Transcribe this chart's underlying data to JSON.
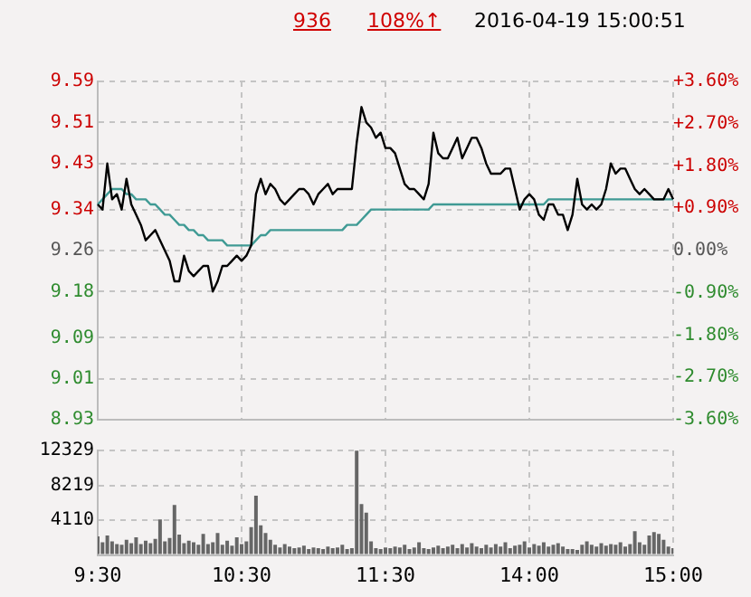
{
  "chart_data": [
    {
      "type": "line",
      "title": "2016-04-19 15:00:51",
      "annotations": [
        "936",
        "108%↑"
      ],
      "categories": [
        null,
        null,
        null,
        null,
        null,
        null,
        null,
        null,
        null,
        null,
        null,
        null,
        null,
        null,
        null,
        null,
        null,
        null,
        null,
        null,
        null,
        null,
        null,
        null,
        null,
        null,
        null,
        null,
        null,
        null,
        null,
        null,
        null,
        null,
        null,
        null,
        null,
        null,
        null,
        null,
        null,
        null,
        null,
        null,
        null,
        null,
        null,
        null,
        null,
        null,
        null,
        null,
        null,
        null,
        null,
        null,
        null,
        null,
        null,
        null,
        null,
        null,
        null,
        null,
        null,
        null,
        null,
        null,
        null,
        null,
        null,
        null,
        null,
        null,
        null,
        null,
        null,
        null,
        null,
        null,
        null,
        null,
        null,
        null,
        null,
        null,
        null,
        null,
        null,
        null,
        null,
        null,
        null,
        null,
        null,
        null,
        null,
        null,
        null,
        null,
        null,
        null,
        null,
        null,
        null,
        null,
        null,
        null,
        null,
        null,
        null,
        null,
        null,
        null,
        null,
        null,
        null,
        null,
        null,
        null,
        null
      ],
      "ylim": [
        8.93,
        9.59
      ],
      "yticks": [
        8.93,
        9.01,
        9.09,
        9.18,
        9.26,
        9.34,
        9.43,
        9.51,
        9.59
      ],
      "y2lim": [
        -3.6,
        3.6
      ],
      "y2ticks": [
        {
          "value": -3.6,
          "label": "-3.60%"
        },
        {
          "value": -2.7,
          "label": "-2.70%"
        },
        {
          "value": -1.8,
          "label": "-1.80%"
        },
        {
          "value": -0.9,
          "label": "-0.90%"
        },
        {
          "value": 0,
          "label": "0.00%"
        },
        {
          "value": 0.9,
          "label": "+0.90%"
        },
        {
          "value": 1.8,
          "label": "+1.80%"
        },
        {
          "value": 2.7,
          "label": "+2.70%"
        },
        {
          "value": 3.6,
          "label": "+3.60%"
        }
      ],
      "tick_labels": "y",
      "grid": true,
      "legend": false,
      "marker": "none",
      "line_style": "solid",
      "series": [
        {
          "color": "#000000",
          "values": [
            9.35,
            9.34,
            9.43,
            9.36,
            9.37,
            9.34,
            9.4,
            9.35,
            9.33,
            9.31,
            9.28,
            9.29,
            9.3,
            9.28,
            9.26,
            9.24,
            9.2,
            9.2,
            9.25,
            9.22,
            9.21,
            9.22,
            9.23,
            9.23,
            9.18,
            9.2,
            9.23,
            9.23,
            9.24,
            9.25,
            9.24,
            9.25,
            9.27,
            9.37,
            9.4,
            9.37,
            9.39,
            9.38,
            9.36,
            9.35,
            9.36,
            9.37,
            9.38,
            9.38,
            9.37,
            9.35,
            9.37,
            9.38,
            9.39,
            9.37,
            9.38,
            9.38,
            9.38,
            9.38,
            9.47,
            9.54,
            9.51,
            9.5,
            9.48,
            9.49,
            9.46,
            9.46,
            9.45,
            9.42,
            9.39,
            9.38,
            9.38,
            9.37,
            9.36,
            9.39,
            9.49,
            9.45,
            9.44,
            9.44,
            9.46,
            9.48,
            9.44,
            9.46,
            9.48,
            9.48,
            9.46,
            9.43,
            9.41,
            9.41,
            9.41,
            9.42,
            9.42,
            9.38,
            9.34,
            9.36,
            9.37,
            9.36,
            9.33,
            9.32,
            9.35,
            9.35,
            9.33,
            9.33,
            9.3,
            9.33,
            9.4,
            9.35,
            9.34,
            9.35,
            9.34,
            9.35,
            9.38,
            9.43,
            9.41,
            9.42,
            9.42,
            9.4,
            9.38,
            9.37,
            9.38,
            9.37,
            9.36,
            9.36,
            9.36,
            9.38,
            9.36
          ]
        },
        {
          "color": "#3f9a94",
          "values": [
            9.35,
            9.36,
            9.37,
            9.38,
            9.38,
            9.38,
            9.37,
            9.37,
            9.36,
            9.36,
            9.36,
            9.35,
            9.35,
            9.34,
            9.33,
            9.33,
            9.32,
            9.31,
            9.31,
            9.3,
            9.3,
            9.29,
            9.29,
            9.28,
            9.28,
            9.28,
            9.28,
            9.27,
            9.27,
            9.27,
            9.27,
            9.27,
            9.27,
            9.28,
            9.29,
            9.29,
            9.3,
            9.3,
            9.3,
            9.3,
            9.3,
            9.3,
            9.3,
            9.3,
            9.3,
            9.3,
            9.3,
            9.3,
            9.3,
            9.3,
            9.3,
            9.3,
            9.31,
            9.31,
            9.31,
            9.32,
            9.33,
            9.34,
            9.34,
            9.34,
            9.34,
            9.34,
            9.34,
            9.34,
            9.34,
            9.34,
            9.34,
            9.34,
            9.34,
            9.34,
            9.35,
            9.35,
            9.35,
            9.35,
            9.35,
            9.35,
            9.35,
            9.35,
            9.35,
            9.35,
            9.35,
            9.35,
            9.35,
            9.35,
            9.35,
            9.35,
            9.35,
            9.35,
            9.35,
            9.35,
            9.35,
            9.35,
            9.35,
            9.35,
            9.36,
            9.36,
            9.36,
            9.36,
            9.36,
            9.36,
            9.36,
            9.36,
            9.36,
            9.36,
            9.36,
            9.36,
            9.36,
            9.36,
            9.36,
            9.36,
            9.36,
            9.36,
            9.36,
            9.36,
            9.36,
            9.36,
            9.36,
            9.36,
            9.36,
            9.36,
            9.36
          ]
        }
      ]
    },
    {
      "type": "bar",
      "categories": [
        "9:30",
        null,
        null,
        null,
        null,
        null,
        null,
        null,
        null,
        null,
        null,
        null,
        null,
        null,
        null,
        null,
        null,
        null,
        null,
        null,
        null,
        null,
        null,
        null,
        null,
        null,
        null,
        null,
        null,
        null,
        "10:30",
        null,
        null,
        null,
        null,
        null,
        null,
        null,
        null,
        null,
        null,
        null,
        null,
        null,
        null,
        null,
        null,
        null,
        null,
        null,
        null,
        null,
        null,
        null,
        null,
        null,
        null,
        null,
        null,
        null,
        "11:30",
        null,
        null,
        null,
        null,
        null,
        null,
        null,
        null,
        null,
        null,
        null,
        null,
        null,
        null,
        null,
        null,
        null,
        null,
        null,
        null,
        null,
        null,
        null,
        null,
        null,
        null,
        null,
        null,
        null,
        "14:00",
        null,
        null,
        null,
        null,
        null,
        null,
        null,
        null,
        null,
        null,
        null,
        null,
        null,
        null,
        null,
        null,
        null,
        null,
        null,
        null,
        null,
        null,
        null,
        null,
        null,
        null,
        null,
        null,
        null,
        "15:00"
      ],
      "ylim": [
        0,
        12329
      ],
      "yticks": [
        {
          "value": 0,
          "label": null
        },
        4110,
        8219,
        12329
      ],
      "grid": true,
      "legend": false,
      "color": "#666666",
      "values": [
        2200,
        1500,
        2300,
        1600,
        1300,
        1200,
        1800,
        1400,
        2100,
        1300,
        1700,
        1400,
        1900,
        4200,
        1600,
        2000,
        5900,
        2400,
        1400,
        1700,
        1500,
        1200,
        2500,
        1300,
        1500,
        2600,
        1200,
        1700,
        1100,
        2100,
        1300,
        1600,
        3300,
        7000,
        3500,
        2600,
        1800,
        1200,
        900,
        1300,
        1000,
        800,
        900,
        1100,
        700,
        900,
        800,
        700,
        1000,
        800,
        900,
        1200,
        700,
        800,
        12300,
        6000,
        5000,
        1600,
        800,
        700,
        900,
        800,
        1000,
        900,
        1200,
        700,
        900,
        1500,
        800,
        700,
        900,
        1100,
        800,
        1000,
        1200,
        800,
        1300,
        900,
        1400,
        1000,
        800,
        1200,
        900,
        1300,
        1000,
        1500,
        800,
        1100,
        1200,
        1600,
        900,
        1300,
        1100,
        1500,
        1000,
        1200,
        1400,
        1000,
        700,
        700,
        600,
        1200,
        1600,
        1200,
        1000,
        1400,
        1100,
        1300,
        1200,
        1500,
        1000,
        1300,
        2800,
        1500,
        1200,
        2300,
        2700,
        2500,
        1800,
        1000,
        800
      ]
    }
  ]
}
